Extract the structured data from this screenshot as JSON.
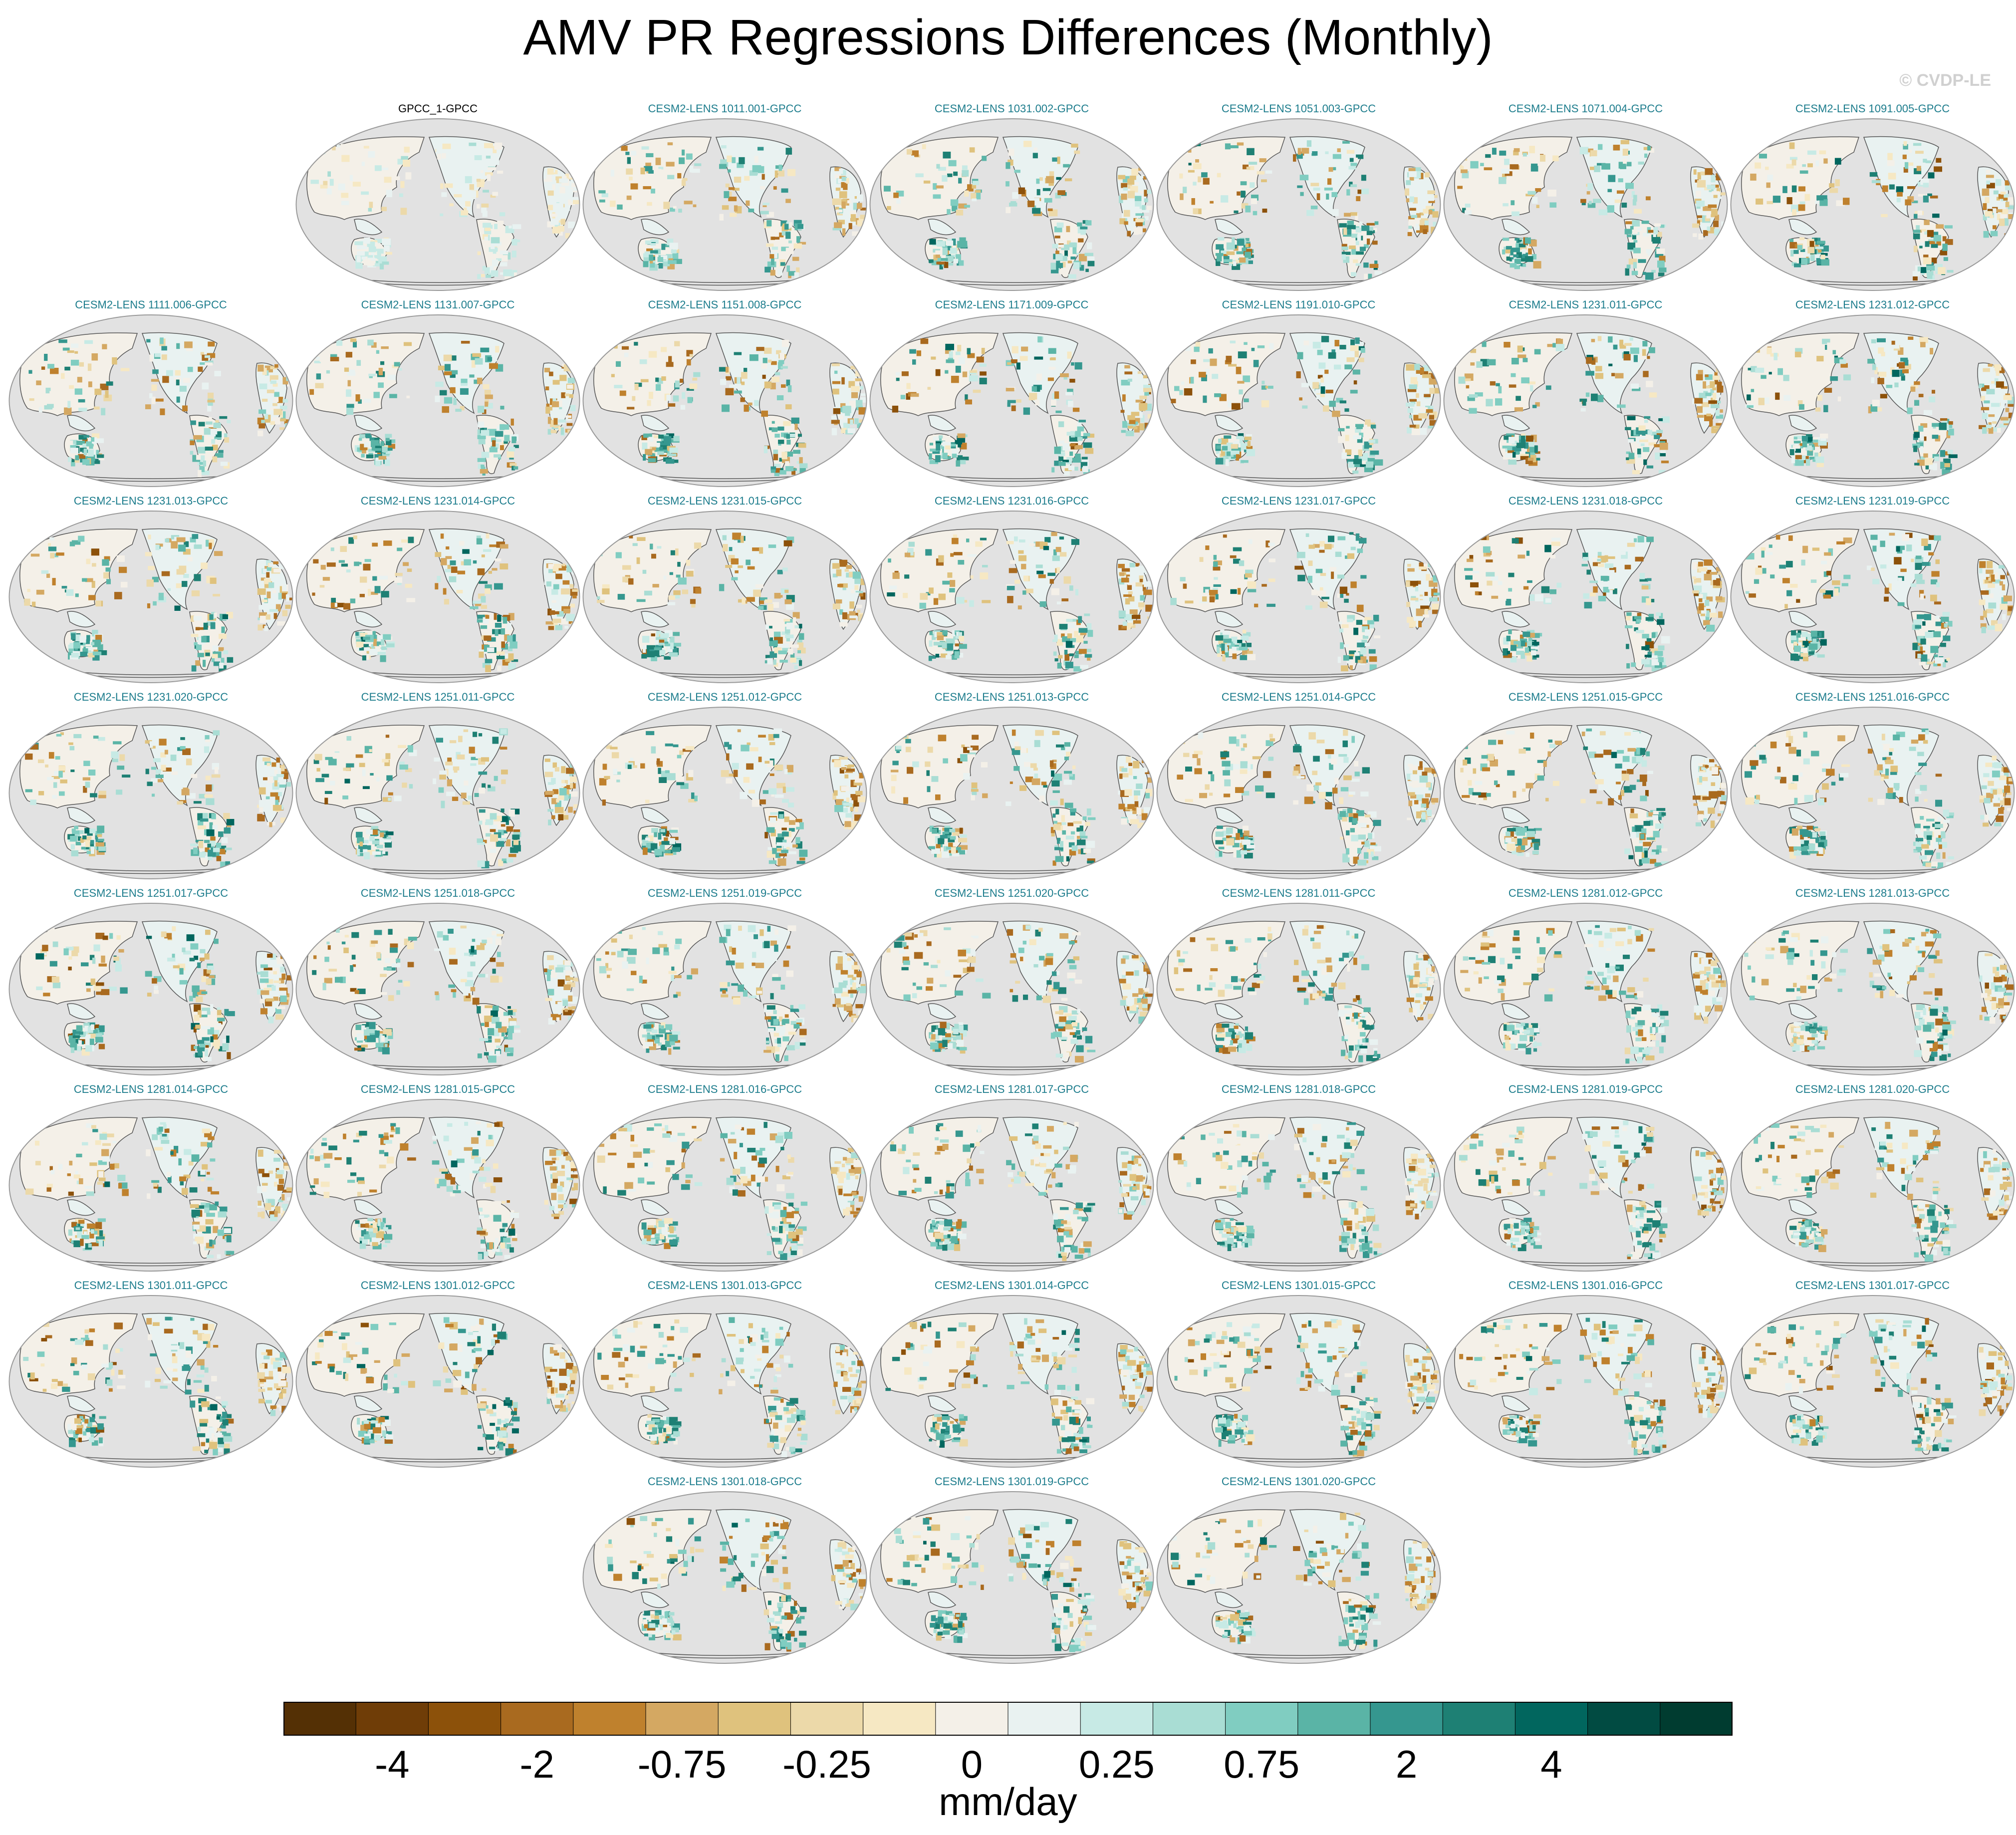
{
  "chart_data": {
    "type": "heatmap",
    "title": "AMV PR Regressions Differences (Monthly)",
    "copyright": "© CVDP-LE",
    "panels": [
      {
        "label": "GPCC_1-GPCC",
        "observational": true,
        "intensity": 0.25
      },
      {
        "label": "CESM2-LENS 1011.001-GPCC",
        "intensity": 0.7
      },
      {
        "label": "CESM2-LENS 1031.002-GPCC",
        "intensity": 0.8
      },
      {
        "label": "CESM2-LENS 1051.003-GPCC",
        "intensity": 0.8
      },
      {
        "label": "CESM2-LENS 1071.004-GPCC",
        "intensity": 0.75
      },
      {
        "label": "CESM2-LENS 1091.005-GPCC",
        "intensity": 0.85
      },
      {
        "label": "CESM2-LENS 1111.006-GPCC",
        "intensity": 0.75
      },
      {
        "label": "CESM2-LENS 1131.007-GPCC",
        "intensity": 0.75
      },
      {
        "label": "CESM2-LENS 1151.008-GPCC",
        "intensity": 0.8
      },
      {
        "label": "CESM2-LENS 1171.009-GPCC",
        "intensity": 0.85
      },
      {
        "label": "CESM2-LENS 1191.010-GPCC",
        "intensity": 0.8
      },
      {
        "label": "CESM2-LENS 1231.011-GPCC",
        "intensity": 0.85
      },
      {
        "label": "CESM2-LENS 1231.012-GPCC",
        "intensity": 0.85
      },
      {
        "label": "CESM2-LENS 1231.013-GPCC",
        "intensity": 0.8
      },
      {
        "label": "CESM2-LENS 1231.014-GPCC",
        "intensity": 0.8
      },
      {
        "label": "CESM2-LENS 1231.015-GPCC",
        "intensity": 0.8
      },
      {
        "label": "CESM2-LENS 1231.016-GPCC",
        "intensity": 0.8
      },
      {
        "label": "CESM2-LENS 1231.017-GPCC",
        "intensity": 0.8
      },
      {
        "label": "CESM2-LENS 1231.018-GPCC",
        "intensity": 0.85
      },
      {
        "label": "CESM2-LENS 1231.019-GPCC",
        "intensity": 0.85
      },
      {
        "label": "CESM2-LENS 1231.020-GPCC",
        "intensity": 0.8
      },
      {
        "label": "CESM2-LENS 1251.011-GPCC",
        "intensity": 0.8
      },
      {
        "label": "CESM2-LENS 1251.012-GPCC",
        "intensity": 0.8
      },
      {
        "label": "CESM2-LENS 1251.013-GPCC",
        "intensity": 0.8
      },
      {
        "label": "CESM2-LENS 1251.014-GPCC",
        "intensity": 0.75
      },
      {
        "label": "CESM2-LENS 1251.015-GPCC",
        "intensity": 0.8
      },
      {
        "label": "CESM2-LENS 1251.016-GPCC",
        "intensity": 0.75
      },
      {
        "label": "CESM2-LENS 1251.017-GPCC",
        "intensity": 0.85
      },
      {
        "label": "CESM2-LENS 1251.018-GPCC",
        "intensity": 0.8
      },
      {
        "label": "CESM2-LENS 1251.019-GPCC",
        "intensity": 0.75
      },
      {
        "label": "CESM2-LENS 1251.020-GPCC",
        "intensity": 0.75
      },
      {
        "label": "CESM2-LENS 1281.011-GPCC",
        "intensity": 0.8
      },
      {
        "label": "CESM2-LENS 1281.012-GPCC",
        "intensity": 0.75
      },
      {
        "label": "CESM2-LENS 1281.013-GPCC",
        "intensity": 0.8
      },
      {
        "label": "CESM2-LENS 1281.014-GPCC",
        "intensity": 0.8
      },
      {
        "label": "CESM2-LENS 1281.015-GPCC",
        "intensity": 0.8
      },
      {
        "label": "CESM2-LENS 1281.016-GPCC",
        "intensity": 0.75
      },
      {
        "label": "CESM2-LENS 1281.017-GPCC",
        "intensity": 0.75
      },
      {
        "label": "CESM2-LENS 1281.018-GPCC",
        "intensity": 0.75
      },
      {
        "label": "CESM2-LENS 1281.019-GPCC",
        "intensity": 0.8
      },
      {
        "label": "CESM2-LENS 1281.020-GPCC",
        "intensity": 0.75
      },
      {
        "label": "CESM2-LENS 1301.011-GPCC",
        "intensity": 0.8
      },
      {
        "label": "CESM2-LENS 1301.012-GPCC",
        "intensity": 0.8
      },
      {
        "label": "CESM2-LENS 1301.013-GPCC",
        "intensity": 0.75
      },
      {
        "label": "CESM2-LENS 1301.014-GPCC",
        "intensity": 0.8
      },
      {
        "label": "CESM2-LENS 1301.015-GPCC",
        "intensity": 0.8
      },
      {
        "label": "CESM2-LENS 1301.016-GPCC",
        "intensity": 0.8
      },
      {
        "label": "CESM2-LENS 1301.017-GPCC",
        "intensity": 0.8
      },
      {
        "label": "CESM2-LENS 1301.018-GPCC",
        "intensity": 0.8
      },
      {
        "label": "CESM2-LENS 1301.019-GPCC",
        "intensity": 0.8
      },
      {
        "label": "CESM2-LENS 1301.020-GPCC",
        "intensity": 0.8
      }
    ],
    "colorbar": {
      "units": "mm/day",
      "colors": [
        "#543005",
        "#6f3d07",
        "#8c510a",
        "#a96a1f",
        "#bf812d",
        "#d4a862",
        "#dfc27d",
        "#ecd9a9",
        "#f6e8c3",
        "#f4f0e8",
        "#e9f2f1",
        "#c7eae5",
        "#a9ddd4",
        "#80cdc1",
        "#5ab4a6",
        "#35978f",
        "#1e8074",
        "#01665e",
        "#014b42",
        "#003c30"
      ],
      "tick_labels": [
        "-4",
        "-2",
        "-0.75",
        "-0.25",
        "0",
        "0.25",
        "0.75",
        "2",
        "4"
      ],
      "tick_after_bin": [
        2,
        4,
        6,
        8,
        10,
        12,
        14,
        16,
        18
      ]
    }
  }
}
